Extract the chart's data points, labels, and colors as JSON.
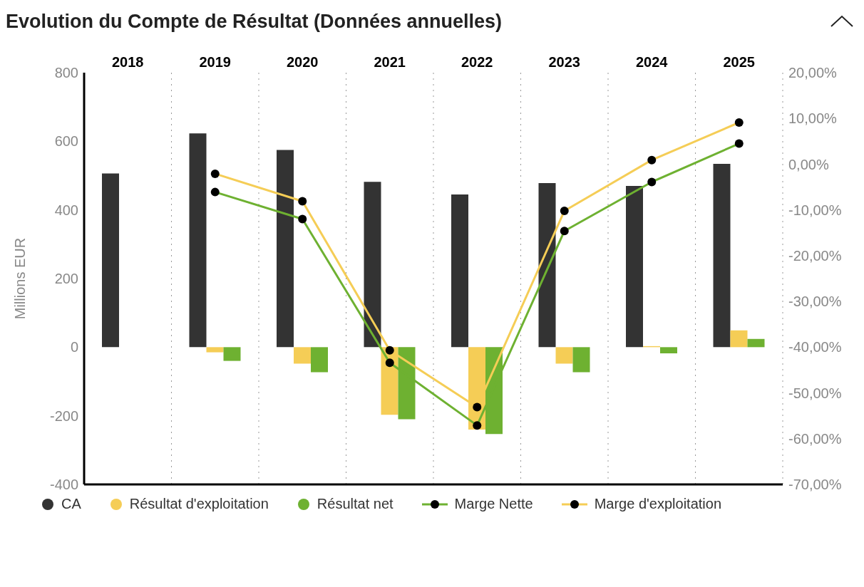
{
  "chart_data": {
    "type": "bar",
    "title": "Evolution du Compte de Résultat (Données annuelles)",
    "ylabel": "Millions EUR",
    "categories": [
      "2018",
      "2019",
      "2020",
      "2021",
      "2022",
      "2023",
      "2024",
      "2025"
    ],
    "series": [
      {
        "name": "CA",
        "color": "#333333",
        "values": [
          506,
          623,
          575,
          482,
          445,
          478,
          470,
          534
        ]
      },
      {
        "name": "Résultat d'exploitation",
        "color": "#f5cd56",
        "values": [
          null,
          -15,
          -48,
          -197,
          -240,
          -48,
          3,
          49
        ]
      },
      {
        "name": "Résultat net",
        "color": "#6eb131",
        "values": [
          null,
          -40,
          -73,
          -210,
          -253,
          -73,
          -18,
          24
        ]
      },
      {
        "name": "Marge Nette",
        "type": "line",
        "axis": "y2",
        "color": "#6eb131",
        "values": [
          null,
          -6.1,
          -12.0,
          -43.4,
          -57.1,
          -14.6,
          -3.9,
          4.5
        ]
      },
      {
        "name": "Marge d'exploitation",
        "type": "line",
        "axis": "y2",
        "color": "#f5cd56",
        "values": [
          null,
          -2.1,
          -8.1,
          -40.7,
          -53.1,
          -10.2,
          0.9,
          9.1
        ]
      }
    ],
    "ylim": [
      -400,
      800
    ],
    "yticks": [
      -400,
      -200,
      0,
      200,
      400,
      600,
      800
    ],
    "y2lim": [
      -70,
      20
    ],
    "y2ticks": [
      {
        "value": -70,
        "label": "-70,00%"
      },
      {
        "value": -60,
        "label": "-60,00%"
      },
      {
        "value": -50,
        "label": "-50,00%"
      },
      {
        "value": -40,
        "label": "-40,00%"
      },
      {
        "value": -30,
        "label": "-30,00%"
      },
      {
        "value": -20,
        "label": "-20,00%"
      },
      {
        "value": -10,
        "label": "-10,00%"
      },
      {
        "value": 0,
        "label": "0,00%"
      },
      {
        "value": 10,
        "label": "10,00%"
      },
      {
        "value": 20,
        "label": "20,00%"
      }
    ],
    "grid": "x",
    "legend": "bottom",
    "marker": "circle",
    "line_style": "solid"
  }
}
